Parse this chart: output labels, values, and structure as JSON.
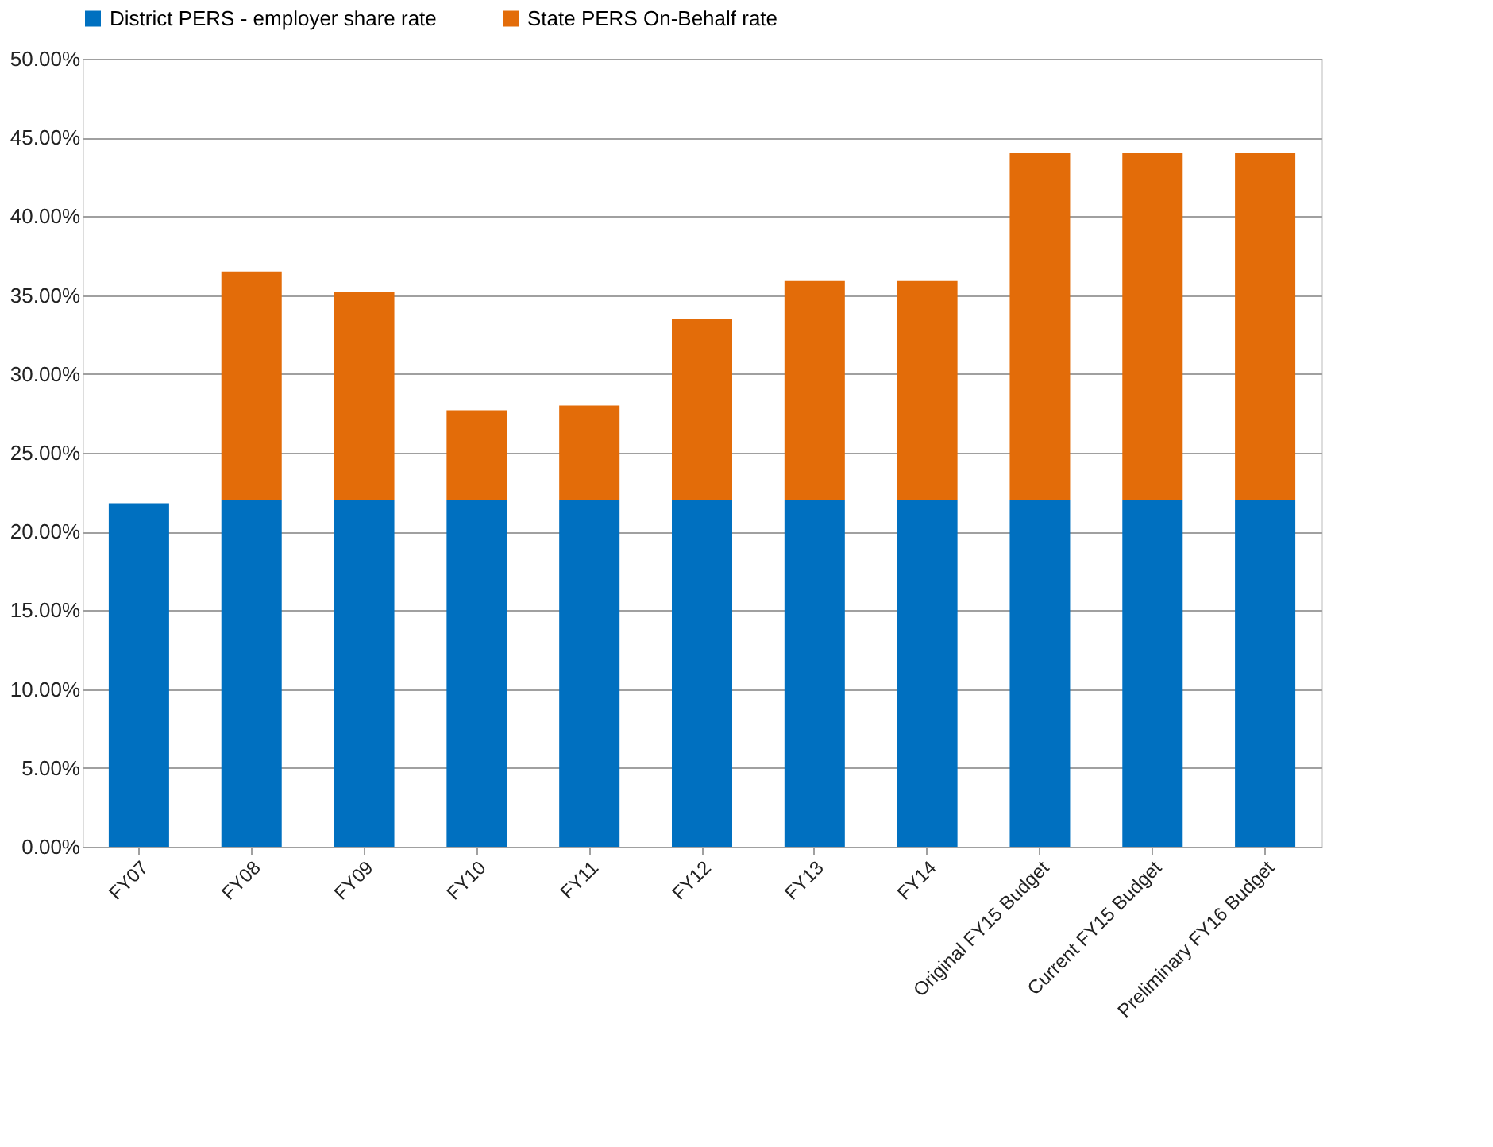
{
  "chart_data": {
    "type": "bar",
    "stacked": true,
    "categories": [
      "FY07",
      "FY08",
      "FY09",
      "FY10",
      "FY11",
      "FY12",
      "FY13",
      "FY14",
      "Original FY15 Budget",
      "Current FY15 Budget",
      "Preliminary FY16 Budget"
    ],
    "series": [
      {
        "name": "District PERS - employer share rate",
        "color": "#0070c0",
        "values": [
          21.8,
          22.0,
          22.0,
          22.0,
          22.0,
          22.0,
          22.0,
          22.0,
          22.0,
          22.0,
          22.0
        ]
      },
      {
        "name": "State PERS On-Behalf rate",
        "color": "#e36c09",
        "values": [
          null,
          14.5,
          13.2,
          5.7,
          6.0,
          11.5,
          13.9,
          13.9,
          22.0,
          22.0,
          22.0
        ]
      }
    ],
    "ylim": [
      0,
      50
    ],
    "yticks": [
      {
        "value": 0,
        "label": "0.00%"
      },
      {
        "value": 5,
        "label": "5.00%"
      },
      {
        "value": 10,
        "label": "10.00%"
      },
      {
        "value": 15,
        "label": "15.00%"
      },
      {
        "value": 20,
        "label": "20.00%"
      },
      {
        "value": 25,
        "label": "25.00%"
      },
      {
        "value": 30,
        "label": "30.00%"
      },
      {
        "value": 35,
        "label": "35.00%"
      },
      {
        "value": 40,
        "label": "40.00%"
      },
      {
        "value": 45,
        "label": "45.00%"
      },
      {
        "value": 50,
        "label": "50.00%"
      }
    ],
    "grid": "y",
    "legend": "top"
  }
}
